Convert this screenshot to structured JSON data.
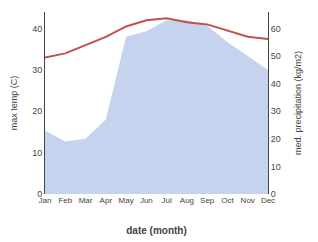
{
  "chart_data": {
    "type": "line",
    "xlabel": "date (month)",
    "ylabel": "max temp (C)",
    "y2label": "med. precipitation (kg/m2)",
    "categories": [
      "Jan",
      "Feb",
      "Mar",
      "Apr",
      "May",
      "Jun",
      "Jul",
      "Aug",
      "Sep",
      "Oct",
      "Nov",
      "Dec"
    ],
    "series": [
      {
        "type": "area",
        "axis": "y2",
        "color": "#c5d3ee",
        "values": [
          23,
          19,
          20,
          27,
          57,
          59,
          63,
          63,
          61,
          55,
          50,
          45
        ]
      },
      {
        "type": "line",
        "color": "#c0504d",
        "values": [
          33,
          34,
          36,
          38,
          40.5,
          42,
          42.5,
          41.5,
          41,
          39.5,
          38,
          37.5
        ]
      }
    ],
    "ylim": [
      0,
      44
    ],
    "yticks": [
      0,
      10,
      20,
      30,
      40
    ],
    "y2lim": [
      0,
      66
    ],
    "y2ticks": [
      0,
      10,
      20,
      30,
      40,
      50,
      60
    ],
    "grid": false
  }
}
